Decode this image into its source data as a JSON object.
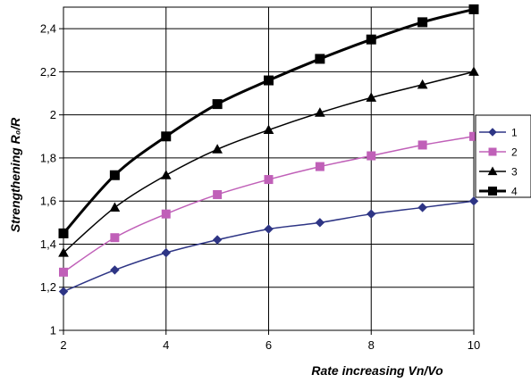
{
  "chart_data": {
    "type": "line",
    "title": "",
    "xlabel": "Rate increasing Vn/Vo",
    "ylabel": "Strengthening  R₀/R",
    "x": [
      2,
      3,
      4,
      5,
      6,
      7,
      8,
      9,
      10
    ],
    "xlim": [
      2,
      10
    ],
    "ylim": [
      1,
      2.5
    ],
    "x_ticks": [
      2,
      4,
      6,
      8,
      10
    ],
    "x_tick_labels": [
      "2",
      "4",
      "6",
      "8",
      "10"
    ],
    "y_ticks": [
      1,
      1.2,
      1.4,
      1.6,
      1.8,
      2,
      2.2,
      2.4
    ],
    "y_tick_labels": [
      "1",
      "1,2",
      "1,4",
      "1,6",
      "1,8",
      "2",
      "2,2",
      "2,4"
    ],
    "grid": "horizontal and vertical major gridlines",
    "legend_position": "right",
    "series": [
      {
        "name": "1",
        "color": "#2E3585",
        "marker": "diamond",
        "line_width": 1.5,
        "values": [
          1.18,
          1.28,
          1.36,
          1.42,
          1.47,
          1.5,
          1.54,
          1.57,
          1.6
        ]
      },
      {
        "name": "2",
        "color": "#C060B8",
        "marker": "square",
        "line_width": 1.5,
        "values": [
          1.27,
          1.43,
          1.54,
          1.63,
          1.7,
          1.76,
          1.81,
          1.86,
          1.9
        ]
      },
      {
        "name": "3",
        "color": "#000000",
        "marker": "triangle",
        "line_width": 1.5,
        "values": [
          1.36,
          1.57,
          1.72,
          1.84,
          1.93,
          2.01,
          2.08,
          2.14,
          2.2
        ]
      },
      {
        "name": "4",
        "color": "#000000",
        "marker": "square",
        "line_width": 3,
        "values": [
          1.45,
          1.72,
          1.9,
          2.05,
          2.16,
          2.26,
          2.35,
          2.43,
          2.49
        ]
      }
    ]
  }
}
